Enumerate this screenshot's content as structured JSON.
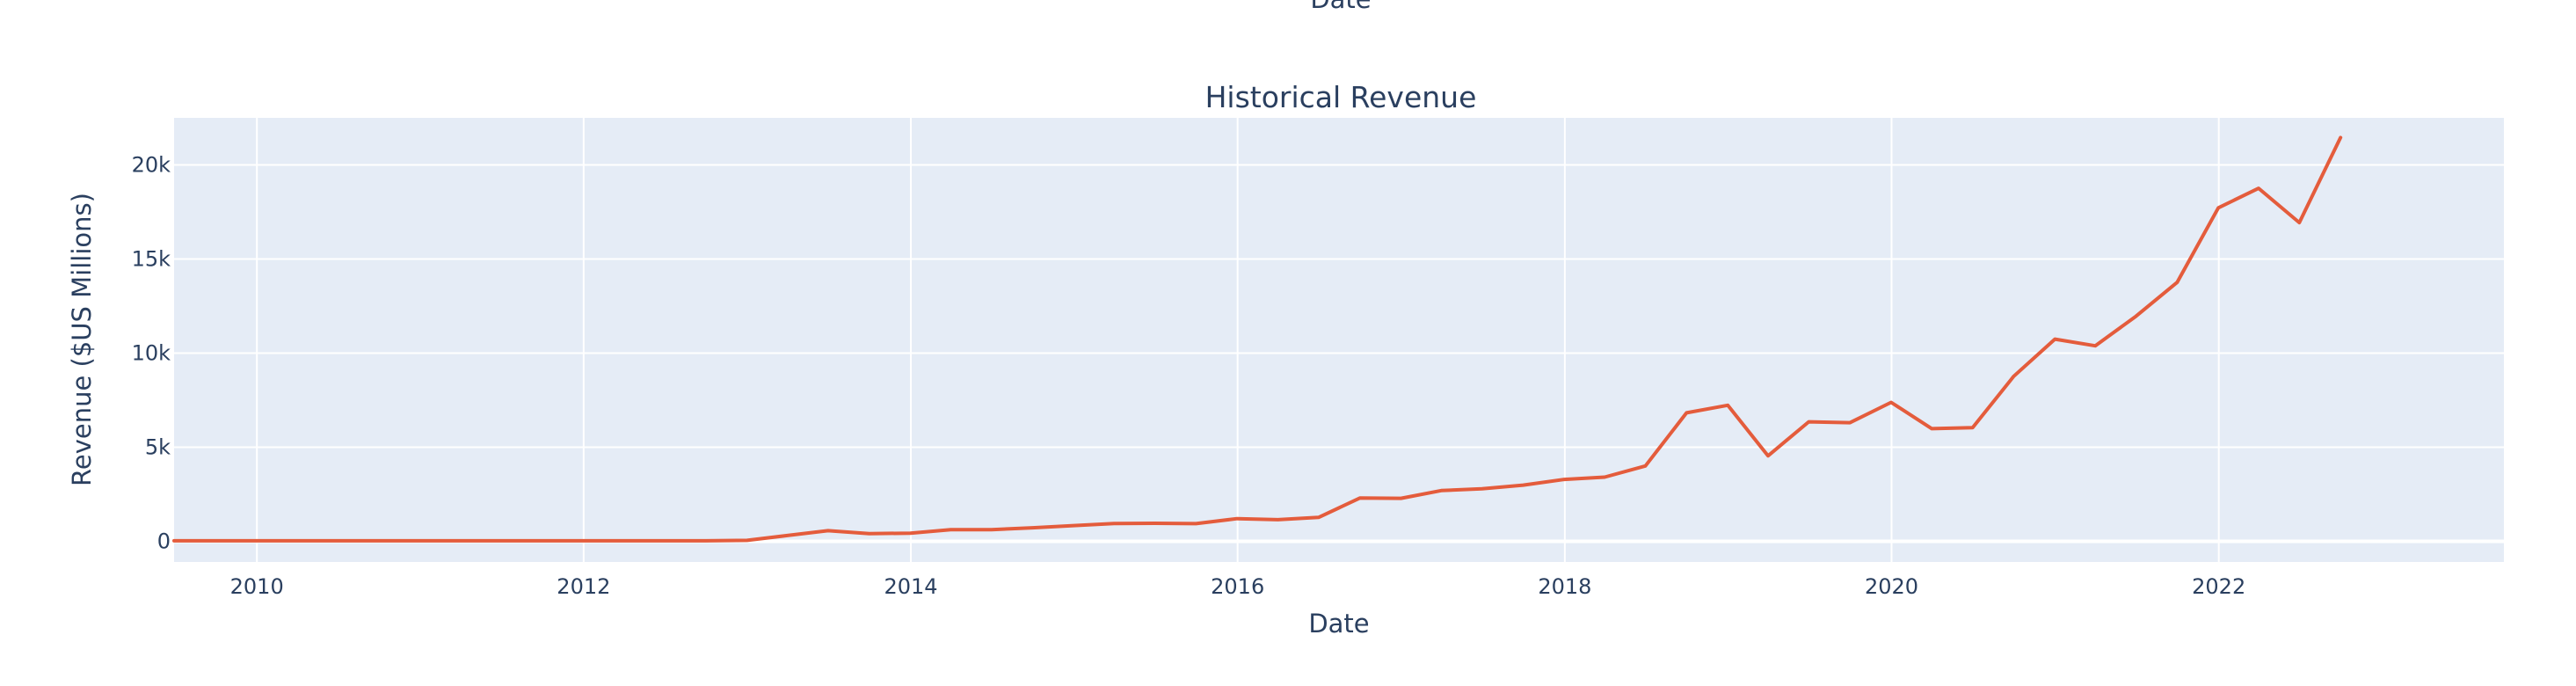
{
  "chart_data": {
    "type": "line",
    "title": "Historical Revenue",
    "xlabel": "Date",
    "ylabel": "Revenue ($US Millions)",
    "top_residual_label": "Date",
    "xlim": [
      "2009-06-30",
      "2023-09-30"
    ],
    "ylim": [
      -1100,
      22500
    ],
    "x_ticks": [
      {
        "value": "2010-01-01",
        "label": "2010"
      },
      {
        "value": "2012-01-01",
        "label": "2012"
      },
      {
        "value": "2014-01-01",
        "label": "2014"
      },
      {
        "value": "2016-01-01",
        "label": "2016"
      },
      {
        "value": "2018-01-01",
        "label": "2018"
      },
      {
        "value": "2020-01-01",
        "label": "2020"
      },
      {
        "value": "2022-01-01",
        "label": "2022"
      }
    ],
    "y_ticks": [
      {
        "value": 0,
        "label": "0"
      },
      {
        "value": 5000,
        "label": "5k"
      },
      {
        "value": 10000,
        "label": "10k"
      },
      {
        "value": 15000,
        "label": "15k"
      },
      {
        "value": 20000,
        "label": "20k"
      }
    ],
    "grid": true,
    "plot_bgcolor": "#e5ecf6",
    "grid_color": "#ffffff",
    "series": [
      {
        "color": "#e45c3c",
        "x": [
          "2009-06-30",
          "2009-09-30",
          "2009-12-31",
          "2010-03-31",
          "2010-06-30",
          "2010-09-30",
          "2010-12-31",
          "2011-03-31",
          "2011-06-30",
          "2011-09-30",
          "2011-12-31",
          "2012-03-31",
          "2012-06-30",
          "2012-09-30",
          "2012-12-31",
          "2013-03-31",
          "2013-06-30",
          "2013-09-30",
          "2013-12-31",
          "2014-03-31",
          "2014-06-30",
          "2014-09-30",
          "2014-12-31",
          "2015-03-31",
          "2015-06-30",
          "2015-09-30",
          "2015-12-31",
          "2016-03-31",
          "2016-06-30",
          "2016-09-30",
          "2016-12-31",
          "2017-03-31",
          "2017-06-30",
          "2017-09-30",
          "2017-12-31",
          "2018-03-31",
          "2018-06-30",
          "2018-09-30",
          "2018-12-31",
          "2019-03-31",
          "2019-06-30",
          "2019-09-30",
          "2019-12-31",
          "2020-03-31",
          "2020-06-30",
          "2020-09-30",
          "2020-12-31",
          "2021-03-31",
          "2021-06-30",
          "2021-09-30",
          "2021-12-31",
          "2022-03-31",
          "2022-06-30",
          "2022-09-30"
        ],
        "values": [
          27,
          27,
          27,
          27,
          27,
          27,
          27,
          27,
          27,
          27,
          27,
          27,
          27,
          27,
          50,
          306,
          562,
          405,
          431,
          621,
          621,
          720,
          834,
          940,
          955,
          937,
          1205,
          1147,
          1270,
          2298,
          2285,
          2696,
          2790,
          2985,
          3288,
          3409,
          4002,
          6824,
          7226,
          4541,
          6350,
          6303,
          7384,
          5985,
          6036,
          8771,
          10744,
          10389,
          11958,
          13757,
          17719,
          18756,
          16934,
          21454
        ]
      }
    ]
  }
}
